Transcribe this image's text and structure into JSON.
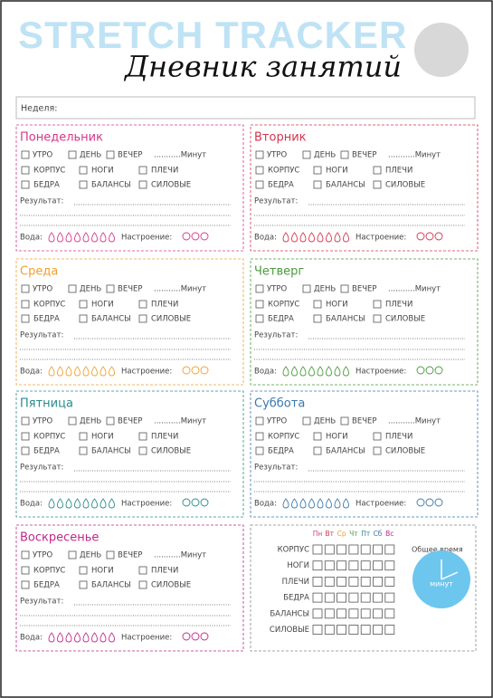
{
  "header": {
    "title": "STRETCH TRACKER",
    "subtitle": "Дневник занятий"
  },
  "week_label": "Неделя:",
  "labels": {
    "times": [
      "УТРО",
      "ДЕНЬ",
      "ВЕЧЕР"
    ],
    "minutes": "...........Минут",
    "zones": [
      "КОРПУС",
      "НОГИ",
      "ПЛЕЧИ",
      "БЕДРА",
      "БАЛАНСЫ",
      "СИЛОВЫЕ"
    ],
    "result": "Результат:",
    "water": "Вода:",
    "mood": "Настроение:"
  },
  "days": [
    {
      "name": "Понедельник",
      "color": "#d6378a"
    },
    {
      "name": "Вторник",
      "color": "#d2354f"
    },
    {
      "name": "Среда",
      "color": "#f0a032"
    },
    {
      "name": "Четверг",
      "color": "#4a9a3c"
    },
    {
      "name": "Пятница",
      "color": "#2a8a8c"
    },
    {
      "name": "Суббота",
      "color": "#3a78ae"
    },
    {
      "name": "Воскресенье",
      "color": "#c0288a"
    }
  ],
  "summary": {
    "days": [
      {
        "label": "Пн",
        "color": "#d6378a"
      },
      {
        "label": "Вт",
        "color": "#d2354f"
      },
      {
        "label": "Ср",
        "color": "#f0a032"
      },
      {
        "label": "Чт",
        "color": "#4a9a3c"
      },
      {
        "label": "Пт",
        "color": "#2a8a8c"
      },
      {
        "label": "Сб",
        "color": "#3a78ae"
      },
      {
        "label": "Вс",
        "color": "#c0288a"
      }
    ],
    "total_label": "Общее время",
    "minutes_label": "минут"
  }
}
